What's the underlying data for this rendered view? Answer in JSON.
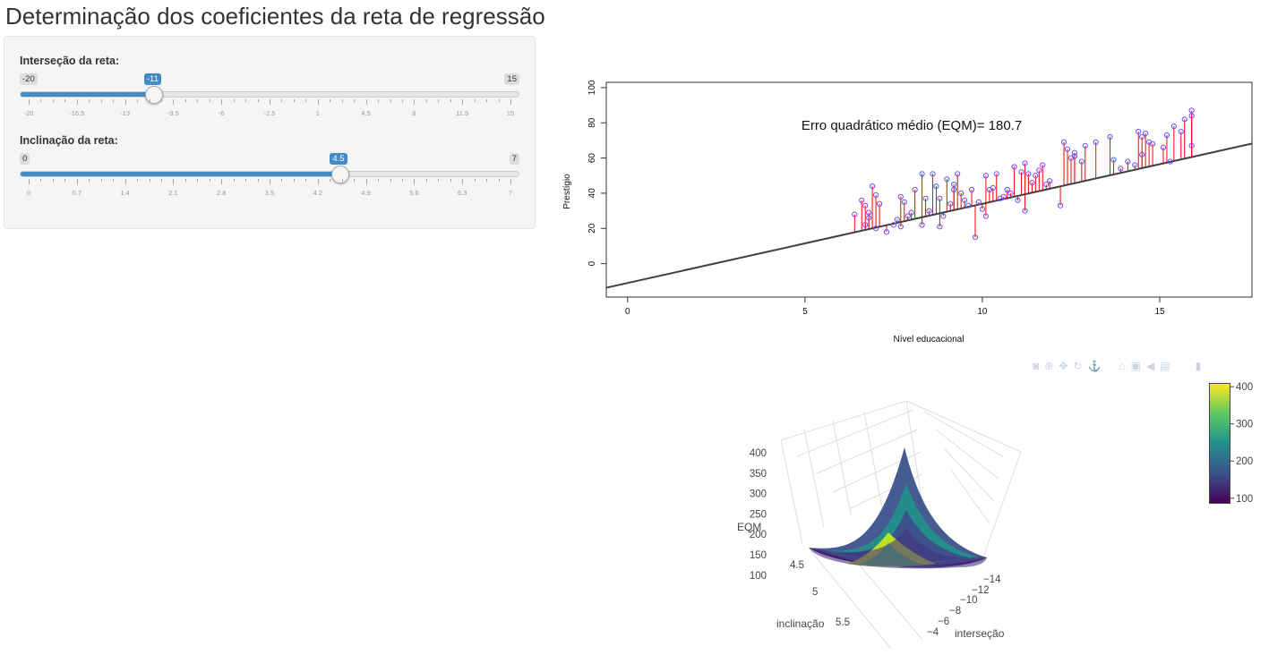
{
  "page": {
    "title": "Determinação dos coeficientes da reta de regressão"
  },
  "sliders": [
    {
      "label": "Interseção da reta:",
      "min": -20,
      "max": 15,
      "value": -11,
      "min_label": "-20",
      "max_label": "15",
      "value_label": "-11",
      "ticks": [
        "-20",
        "-16.5",
        "-13",
        "-9.5",
        "-6",
        "-2.5",
        "1",
        "4.5",
        "8",
        "11.5",
        "15"
      ]
    },
    {
      "label": "Inclinação da reta:",
      "min": 0,
      "max": 7,
      "value": 4.5,
      "min_label": "0",
      "max_label": "7",
      "value_label": "4.5",
      "ticks": [
        "0",
        "0.7",
        "1.4",
        "2.1",
        "2.8",
        "3.5",
        "4.2",
        "4.9",
        "5.6",
        "6.3",
        "7"
      ]
    }
  ],
  "chart_data": [
    {
      "type": "scatter",
      "annotation": "Erro quadrático médio (EQM)=  180.7",
      "xlabel": "Nível educacional",
      "ylabel": "Prestígio",
      "xlim": [
        -0.6,
        17.6
      ],
      "ylim": [
        -19,
        103
      ],
      "xticks": [
        "0",
        "5",
        "10",
        "15"
      ],
      "yticks": [
        "0",
        "20",
        "40",
        "60",
        "80",
        "100"
      ],
      "line": {
        "intercept": -11,
        "slope": 4.5
      },
      "colors": {
        "points": "#6a4cff",
        "residuals": "#ff0000",
        "line": "#404040"
      },
      "grid": false,
      "points": [
        [
          6.4,
          28
        ],
        [
          6.6,
          36
        ],
        [
          6.7,
          33
        ],
        [
          6.8,
          29
        ],
        [
          6.9,
          44
        ],
        [
          7.0,
          39
        ],
        [
          6.8,
          26
        ],
        [
          6.7,
          22
        ],
        [
          7.0,
          20
        ],
        [
          7.1,
          34
        ],
        [
          7.3,
          18
        ],
        [
          7.5,
          22
        ],
        [
          7.6,
          25
        ],
        [
          7.7,
          38
        ],
        [
          7.8,
          35
        ],
        [
          7.9,
          27
        ],
        [
          8.0,
          29
        ],
        [
          8.1,
          42
        ],
        [
          7.7,
          21
        ],
        [
          8.3,
          22
        ],
        [
          8.4,
          37
        ],
        [
          8.5,
          30
        ],
        [
          8.6,
          51
        ],
        [
          8.7,
          44
        ],
        [
          8.8,
          37
        ],
        [
          8.9,
          27
        ],
        [
          9.0,
          48
        ],
        [
          9.1,
          34
        ],
        [
          9.2,
          45
        ],
        [
          8.8,
          21
        ],
        [
          9.3,
          51
        ],
        [
          9.4,
          40
        ],
        [
          9.5,
          36
        ],
        [
          9.6,
          33
        ],
        [
          9.7,
          42
        ],
        [
          9.8,
          15
        ],
        [
          9.9,
          35
        ],
        [
          10.0,
          31
        ],
        [
          10.1,
          50
        ],
        [
          10.2,
          42
        ],
        [
          10.3,
          43
        ],
        [
          10.4,
          51
        ],
        [
          10.5,
          37
        ],
        [
          10.6,
          38
        ],
        [
          10.7,
          42
        ],
        [
          10.8,
          40
        ],
        [
          10.9,
          55
        ],
        [
          11.0,
          36
        ],
        [
          11.1,
          52
        ],
        [
          11.2,
          57
        ],
        [
          11.3,
          51
        ],
        [
          11.4,
          46
        ],
        [
          11.5,
          50
        ],
        [
          11.6,
          53
        ],
        [
          11.7,
          56
        ],
        [
          11.8,
          45
        ],
        [
          11.9,
          47
        ],
        [
          12.2,
          33
        ],
        [
          12.3,
          69
        ],
        [
          12.4,
          65
        ],
        [
          12.5,
          60
        ],
        [
          12.6,
          63
        ],
        [
          12.8,
          58
        ],
        [
          12.9,
          67
        ],
        [
          13.2,
          69
        ],
        [
          13.6,
          72
        ],
        [
          13.7,
          59
        ],
        [
          13.9,
          54
        ],
        [
          14.1,
          58
        ],
        [
          14.3,
          56
        ],
        [
          14.4,
          75
        ],
        [
          14.5,
          62
        ],
        [
          14.6,
          74
        ],
        [
          14.7,
          69
        ],
        [
          14.8,
          68
        ],
        [
          14.5,
          72
        ],
        [
          15.1,
          66
        ],
        [
          15.2,
          73
        ],
        [
          15.3,
          58
        ],
        [
          15.4,
          78
        ],
        [
          15.6,
          75
        ],
        [
          15.7,
          82
        ],
        [
          15.9,
          87
        ],
        [
          15.9,
          84
        ],
        [
          15.9,
          67
        ],
        [
          12.6,
          61
        ],
        [
          11.2,
          30
        ],
        [
          9.2,
          42
        ],
        [
          10.1,
          27
        ],
        [
          8.3,
          51
        ]
      ]
    },
    {
      "type": "surface",
      "zlabel": "EQM",
      "xlabel": "interseção",
      "ylabel": "inclinação",
      "zticks": [
        "400",
        "350",
        "300",
        "250",
        "200",
        "150",
        "100"
      ],
      "yticks": [
        "4.5",
        "5",
        "5.5"
      ],
      "xticks": [
        "−14",
        "−12",
        "−10",
        "−8",
        "−6",
        "−4"
      ],
      "colorbar": {
        "ticks": [
          "400",
          "300",
          "200",
          "100"
        ],
        "range": [
          85,
          410
        ]
      }
    }
  ],
  "toolbar": {
    "icons": [
      "camera-icon",
      "zoom-icon",
      "pan-icon",
      "orbit-icon",
      "turntable-icon",
      "home-icon",
      "reset-camera-icon",
      "hover-closest-icon",
      "toggle-spikelines-icon",
      "plotly-logo-icon"
    ],
    "glyphs": [
      "◙",
      "⊕",
      "✥",
      "↻",
      "⚓",
      "⌂",
      "▣",
      "◀",
      "▤",
      "▮"
    ]
  }
}
